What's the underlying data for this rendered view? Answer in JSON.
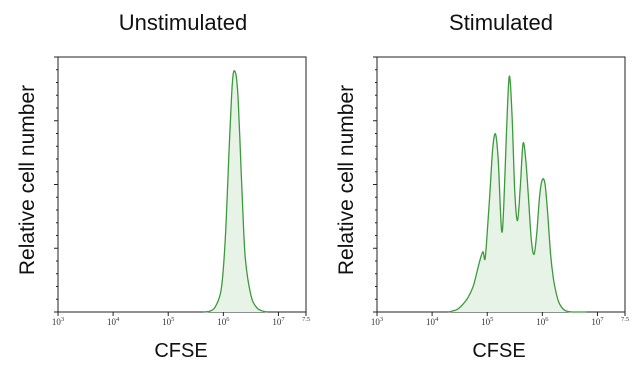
{
  "colors": {
    "line": "#3c9a3c",
    "fill": "#e8f3e8"
  },
  "chart_data": [
    {
      "type": "area",
      "title": "Unstimulated",
      "xlabel": "CFSE",
      "ylabel": "Relative cell number",
      "x_scale": "log10",
      "xlim": [
        3,
        7.5
      ],
      "ylim": [
        0,
        1.06
      ],
      "xticks": [
        {
          "base": "10",
          "exp": "3"
        },
        {
          "base": "10",
          "exp": "4"
        },
        {
          "base": "10",
          "exp": "5"
        },
        {
          "base": "10",
          "exp": "6"
        },
        {
          "base": "10",
          "exp": "7"
        },
        {
          "base": "",
          "exp": "7.5"
        }
      ],
      "series": [
        {
          "x": [
            5.65,
            5.75,
            5.85,
            5.95,
            6.0,
            6.05,
            6.1,
            6.15,
            6.18,
            6.21,
            6.24,
            6.27,
            6.3,
            6.35,
            6.4,
            6.5,
            6.6,
            6.7,
            6.8
          ],
          "y": [
            0,
            0.003,
            0.02,
            0.08,
            0.18,
            0.37,
            0.65,
            0.9,
            0.99,
            1.0,
            0.97,
            0.88,
            0.72,
            0.44,
            0.22,
            0.07,
            0.02,
            0.005,
            0
          ]
        }
      ]
    },
    {
      "type": "area",
      "title": "Stimulated",
      "xlabel": "CFSE",
      "ylabel": "Relative cell number",
      "x_scale": "log10",
      "xlim": [
        3,
        7.5
      ],
      "ylim": [
        0,
        1.06
      ],
      "xticks": [
        {
          "base": "10",
          "exp": "3"
        },
        {
          "base": "10",
          "exp": "4"
        },
        {
          "base": "10",
          "exp": "5"
        },
        {
          "base": "10",
          "exp": "6"
        },
        {
          "base": "10",
          "exp": "7"
        },
        {
          "base": "",
          "exp": "7.5"
        }
      ],
      "series": [
        {
          "x": [
            4.3,
            4.45,
            4.55,
            4.65,
            4.75,
            4.85,
            4.92,
            4.96,
            5.0,
            5.05,
            5.1,
            5.15,
            5.2,
            5.26,
            5.3,
            5.35,
            5.4,
            5.45,
            5.5,
            5.55,
            5.6,
            5.65,
            5.7,
            5.75,
            5.8,
            5.85,
            5.9,
            5.95,
            6.0,
            6.05,
            6.1,
            6.15,
            6.2,
            6.25,
            6.3,
            6.35,
            6.4,
            6.45,
            6.5,
            6.55,
            6.6,
            6.7,
            6.8
          ],
          "y": [
            0,
            0.01,
            0.03,
            0.06,
            0.11,
            0.2,
            0.25,
            0.22,
            0.33,
            0.5,
            0.68,
            0.74,
            0.63,
            0.34,
            0.44,
            0.75,
            0.98,
            0.82,
            0.5,
            0.38,
            0.52,
            0.7,
            0.63,
            0.47,
            0.3,
            0.24,
            0.33,
            0.48,
            0.55,
            0.53,
            0.4,
            0.24,
            0.14,
            0.08,
            0.04,
            0.02,
            0.008,
            0.003,
            0.001,
            0,
            0,
            0,
            0
          ]
        }
      ]
    }
  ]
}
